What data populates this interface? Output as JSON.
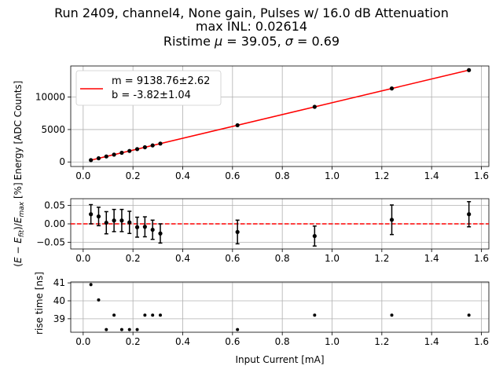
{
  "title": {
    "line1": "Run 2409, channel4, None gain, Pulses w/ 16.0 dB Attenuation",
    "line2": "max INL: 0.02614",
    "line3_prefix": "Ristime ",
    "mu_symbol": "μ",
    "line3_mid": " = 39.05, ",
    "sigma_symbol": "σ",
    "line3_suffix": " = 0.69"
  },
  "colors": {
    "fit_line": "#ff0000",
    "points": "#000000",
    "grid": "#b0b0b0",
    "zero_line": "#ff0000"
  },
  "chart_data": [
    {
      "type": "scatter",
      "name": "energy",
      "ylabel": "Energy [ADC Counts]",
      "xlabel": "",
      "xlim": [
        -0.05,
        1.63
      ],
      "ylim": [
        -700,
        14800
      ],
      "xticks": [
        0.0,
        0.2,
        0.4,
        0.6,
        0.8,
        1.0,
        1.2,
        1.4,
        1.6
      ],
      "yticks": [
        0,
        5000,
        10000
      ],
      "grid": true,
      "legend": {
        "position": "top-left",
        "fit_label_m": "m = 9138.76±2.62",
        "fit_label_b": "b = -3.82±1.04"
      },
      "fit": {
        "m": 9138.76,
        "b": -3.82
      },
      "x": [
        0.031,
        0.062,
        0.093,
        0.124,
        0.155,
        0.186,
        0.217,
        0.248,
        0.279,
        0.31,
        0.62,
        0.93,
        1.24,
        1.55
      ],
      "y": [
        283,
        567,
        850,
        1133,
        1417,
        1700,
        1983,
        2267,
        2550,
        2833,
        5667,
        8500,
        11333,
        14167
      ]
    },
    {
      "type": "errorbar",
      "name": "residual",
      "ylabel_html": "(E − E_fit)/E_max [%]",
      "xlim": [
        -0.05,
        1.63
      ],
      "ylim": [
        -0.068,
        0.068
      ],
      "xticks": [
        0.0,
        0.2,
        0.4,
        0.6,
        0.8,
        1.0,
        1.2,
        1.4,
        1.6
      ],
      "yticks": [
        -0.05,
        0.0,
        0.05
      ],
      "grid": true,
      "zero_line": 0.0,
      "x": [
        0.031,
        0.062,
        0.093,
        0.124,
        0.155,
        0.186,
        0.217,
        0.248,
        0.279,
        0.31,
        0.62,
        0.93,
        1.24,
        1.55
      ],
      "y": [
        0.026,
        0.02,
        0.003,
        0.009,
        0.009,
        0.004,
        -0.009,
        -0.008,
        -0.016,
        -0.026,
        -0.022,
        -0.033,
        0.011,
        0.026
      ],
      "err": [
        0.026,
        0.025,
        0.03,
        0.03,
        0.03,
        0.03,
        0.027,
        0.027,
        0.026,
        0.026,
        0.032,
        0.027,
        0.04,
        0.034
      ]
    },
    {
      "type": "scatter",
      "name": "risetime",
      "ylabel": "rise time [ns]",
      "xlabel": "Input Current [mA]",
      "xlim": [
        -0.05,
        1.63
      ],
      "ylim": [
        38.25,
        41.05
      ],
      "xticks": [
        0.0,
        0.2,
        0.4,
        0.6,
        0.8,
        1.0,
        1.2,
        1.4,
        1.6
      ],
      "yticks": [
        39,
        40,
        41
      ],
      "grid": true,
      "x": [
        0.031,
        0.062,
        0.093,
        0.124,
        0.155,
        0.186,
        0.217,
        0.248,
        0.279,
        0.31,
        0.62,
        0.93,
        1.24,
        1.55
      ],
      "y": [
        40.9,
        40.05,
        38.4,
        39.2,
        38.4,
        38.4,
        38.4,
        39.2,
        39.2,
        39.2,
        38.4,
        39.2,
        39.2,
        39.2
      ]
    }
  ]
}
